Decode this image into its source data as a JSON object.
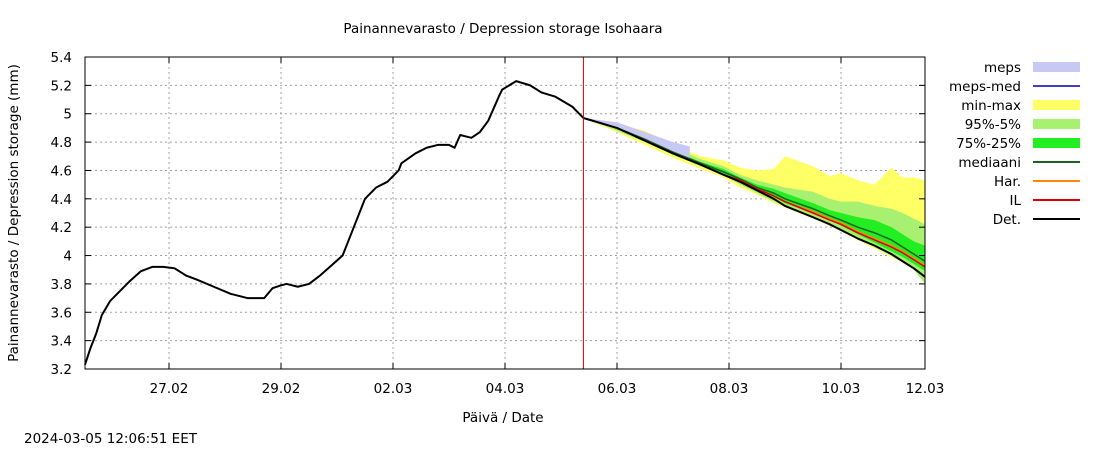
{
  "chart_data": {
    "type": "area",
    "title": "Painannevarasto / Depression storage   Isohaara",
    "xlabel": "Päivä / Date",
    "ylabel": "Painannevarasto / Depression storage (mm)",
    "timestamp": "2024-03-05 12:06:51 EET",
    "ylim": [
      3.2,
      5.4
    ],
    "xlim": [
      -0.5,
      14.5
    ],
    "y_ticks": [
      "3.2",
      "3.4",
      "3.6",
      "3.8",
      "4",
      "4.2",
      "4.4",
      "4.6",
      "4.8",
      "5",
      "5.2",
      "5.4"
    ],
    "x_ticks": [
      {
        "label": "27.02",
        "x": 1
      },
      {
        "label": "29.02",
        "x": 3
      },
      {
        "label": "02.03",
        "x": 5
      },
      {
        "label": "04.03",
        "x": 7
      },
      {
        "label": "06.03",
        "x": 9
      },
      {
        "label": "08.03",
        "x": 11
      },
      {
        "label": "10.03",
        "x": 13
      },
      {
        "label": "12.03",
        "x": 14.5
      }
    ],
    "forecast_start_x": 8.4,
    "legend": [
      "meps",
      "meps-med",
      "min-max",
      "95%-5%",
      "75%-25%",
      "mediaani",
      "Har.",
      "IL",
      "Det."
    ],
    "colors": {
      "meps": "#c8c8f5",
      "meps_med": "#4040c0",
      "min_max": "#ffff66",
      "p95_5": "#a8f070",
      "p75_25": "#22ee22",
      "mediaani": "#206020",
      "har": "#ff8800",
      "il": "#dd0000",
      "det": "#000000",
      "vline": "#cc0000"
    },
    "series": [
      {
        "name": "observed",
        "x": [
          -0.5,
          -0.4,
          -0.3,
          -0.2,
          -0.05,
          0.1,
          0.3,
          0.5,
          0.7,
          0.9,
          1.1,
          1.3,
          1.5,
          1.8,
          2.1,
          2.4,
          2.7,
          2.85,
          3.0,
          3.1,
          3.3,
          3.5,
          3.7,
          3.9,
          4.1,
          4.3,
          4.45,
          4.5,
          4.7,
          4.9,
          5.1,
          5.15,
          5.4,
          5.6,
          5.8,
          6.0,
          6.1,
          6.2,
          6.3,
          6.4,
          6.55,
          6.7,
          6.9,
          6.95,
          7.2,
          7.45,
          7.65,
          7.9,
          8.2,
          8.4
        ],
        "y": [
          3.23,
          3.35,
          3.45,
          3.58,
          3.68,
          3.74,
          3.82,
          3.89,
          3.92,
          3.92,
          3.91,
          3.86,
          3.83,
          3.78,
          3.73,
          3.7,
          3.7,
          3.77,
          3.79,
          3.8,
          3.78,
          3.8,
          3.86,
          3.93,
          4.0,
          4.2,
          4.35,
          4.4,
          4.48,
          4.52,
          4.6,
          4.65,
          4.72,
          4.76,
          4.78,
          4.78,
          4.76,
          4.85,
          4.84,
          4.83,
          4.87,
          4.95,
          5.13,
          5.17,
          5.23,
          5.2,
          5.15,
          5.12,
          5.05,
          4.97
        ]
      },
      {
        "name": "min-max",
        "x": [
          8.4,
          9.0,
          9.5,
          10.0,
          10.5,
          10.9,
          11.2,
          11.5,
          11.8,
          12.0,
          12.5,
          12.8,
          13.0,
          13.3,
          13.6,
          13.9,
          14.1,
          14.3,
          14.5
        ],
        "low": [
          4.97,
          4.87,
          4.78,
          4.69,
          4.61,
          4.55,
          4.48,
          4.43,
          4.37,
          4.34,
          4.26,
          4.21,
          4.17,
          4.11,
          4.05,
          3.99,
          3.95,
          3.9,
          3.85
        ],
        "high": [
          4.97,
          4.93,
          4.88,
          4.78,
          4.7,
          4.67,
          4.62,
          4.6,
          4.61,
          4.7,
          4.63,
          4.56,
          4.58,
          4.53,
          4.5,
          4.62,
          4.55,
          4.55,
          4.53
        ]
      },
      {
        "name": "95%-5%",
        "x": [
          8.4,
          9.0,
          9.5,
          10.0,
          10.5,
          10.9,
          11.2,
          11.5,
          11.8,
          12.0,
          12.5,
          12.8,
          13.0,
          13.3,
          13.6,
          13.9,
          14.1,
          14.3,
          14.5
        ],
        "low": [
          4.97,
          4.88,
          4.8,
          4.71,
          4.63,
          4.57,
          4.5,
          4.44,
          4.38,
          4.35,
          4.27,
          4.22,
          4.18,
          4.12,
          4.06,
          4.0,
          3.96,
          3.9,
          3.8
        ],
        "high": [
          4.97,
          4.92,
          4.85,
          4.76,
          4.68,
          4.63,
          4.57,
          4.53,
          4.5,
          4.48,
          4.45,
          4.4,
          4.38,
          4.38,
          4.35,
          4.33,
          4.3,
          4.26,
          4.22
        ]
      },
      {
        "name": "75%-25%",
        "x": [
          8.4,
          9.0,
          9.5,
          10.0,
          10.5,
          10.9,
          11.2,
          11.5,
          11.8,
          12.0,
          12.5,
          12.8,
          13.0,
          13.3,
          13.6,
          13.9,
          14.1,
          14.3,
          14.5
        ],
        "low": [
          4.97,
          4.89,
          4.81,
          4.72,
          4.64,
          4.58,
          4.52,
          4.46,
          4.41,
          4.37,
          4.3,
          4.25,
          4.21,
          4.15,
          4.09,
          4.03,
          3.99,
          3.94,
          3.89
        ],
        "high": [
          4.97,
          4.91,
          4.83,
          4.74,
          4.66,
          4.61,
          4.55,
          4.5,
          4.47,
          4.44,
          4.37,
          4.32,
          4.3,
          4.27,
          4.25,
          4.2,
          4.15,
          4.1,
          4.07
        ]
      },
      {
        "name": "meps",
        "x": [
          8.4,
          9.0,
          9.5,
          10.0,
          10.3
        ],
        "low": [
          4.97,
          4.9,
          4.82,
          4.73,
          4.69
        ],
        "high": [
          4.97,
          4.94,
          4.87,
          4.8,
          4.77
        ]
      },
      {
        "name": "mediaani",
        "x": [
          8.4,
          9.0,
          9.5,
          10.0,
          10.5,
          10.9,
          11.2,
          11.5,
          11.8,
          12.0,
          12.5,
          12.8,
          13.0,
          13.3,
          13.6,
          13.9,
          14.1,
          14.3,
          14.5
        ],
        "y": [
          4.97,
          4.9,
          4.82,
          4.73,
          4.65,
          4.59,
          4.54,
          4.48,
          4.44,
          4.4,
          4.33,
          4.28,
          4.25,
          4.2,
          4.16,
          4.11,
          4.06,
          4.01,
          3.96
        ]
      },
      {
        "name": "Har.",
        "x": [
          8.4,
          9.0,
          9.5,
          10.0,
          10.5,
          10.9,
          11.2,
          11.5,
          11.8,
          12.0,
          12.5,
          12.8,
          13.0,
          13.3,
          13.6,
          13.9,
          14.1,
          14.3,
          14.5
        ],
        "y": [
          4.97,
          4.9,
          4.81,
          4.72,
          4.64,
          4.57,
          4.53,
          4.47,
          4.42,
          4.38,
          4.31,
          4.26,
          4.23,
          4.17,
          4.12,
          4.07,
          4.03,
          3.98,
          3.93
        ]
      },
      {
        "name": "IL",
        "x": [
          8.4,
          9.0,
          9.5,
          10.0,
          10.5,
          10.9,
          11.2,
          11.5,
          11.8,
          12.0,
          12.5,
          12.8,
          13.0,
          13.3,
          13.6,
          13.9,
          14.1,
          14.3,
          14.5
        ],
        "y": [
          4.97,
          4.9,
          4.81,
          4.72,
          4.64,
          4.57,
          4.53,
          4.47,
          4.42,
          4.38,
          4.3,
          4.25,
          4.22,
          4.16,
          4.11,
          4.06,
          4.02,
          3.97,
          3.92
        ]
      },
      {
        "name": "Det.",
        "x": [
          8.4,
          9.0,
          9.5,
          10.0,
          10.5,
          10.9,
          11.2,
          11.5,
          11.8,
          12.0,
          12.5,
          12.8,
          13.0,
          13.3,
          13.6,
          13.9,
          14.1,
          14.3,
          14.5
        ],
        "y": [
          4.97,
          4.9,
          4.81,
          4.72,
          4.64,
          4.57,
          4.52,
          4.46,
          4.4,
          4.35,
          4.27,
          4.22,
          4.18,
          4.12,
          4.07,
          4.01,
          3.96,
          3.91,
          3.85
        ]
      }
    ]
  }
}
